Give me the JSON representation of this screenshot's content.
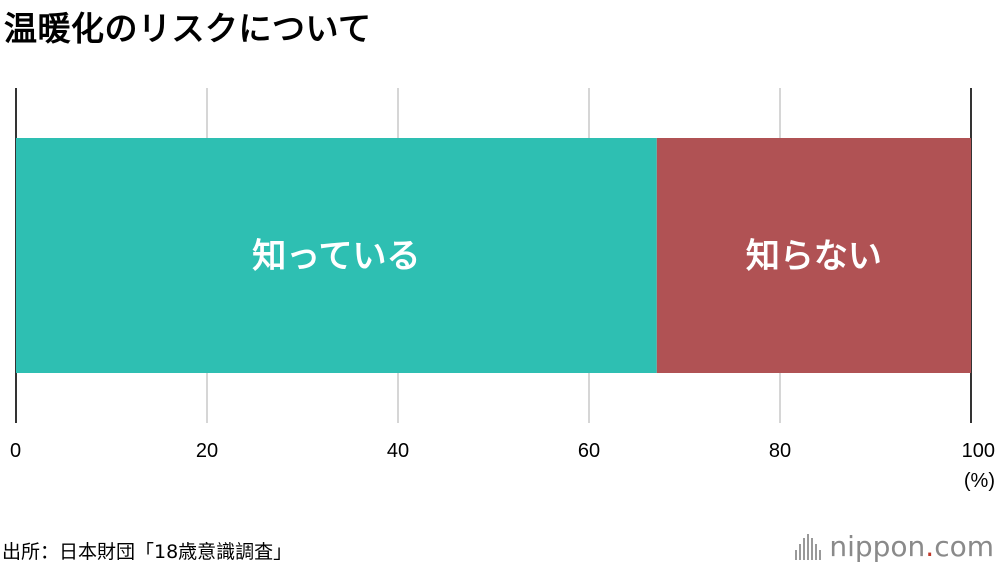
{
  "title": "温暖化のリスクについて",
  "chart_data": {
    "type": "bar",
    "orientation": "horizontal-stacked",
    "series": [
      {
        "name": "知っている",
        "value": 67.1,
        "color": "#2ebfb2"
      },
      {
        "name": "知らない",
        "value": 32.9,
        "color": "#b05254"
      }
    ],
    "xlim": [
      0,
      100
    ],
    "xticks": [
      "0",
      "20",
      "40",
      "60",
      "80",
      "100"
    ],
    "xunit": "(%)",
    "grid": true
  },
  "source": "出所：日本財団「18歳意識調査」",
  "logo": {
    "name": "nippon",
    "dot": ".",
    "suffix": "com"
  }
}
